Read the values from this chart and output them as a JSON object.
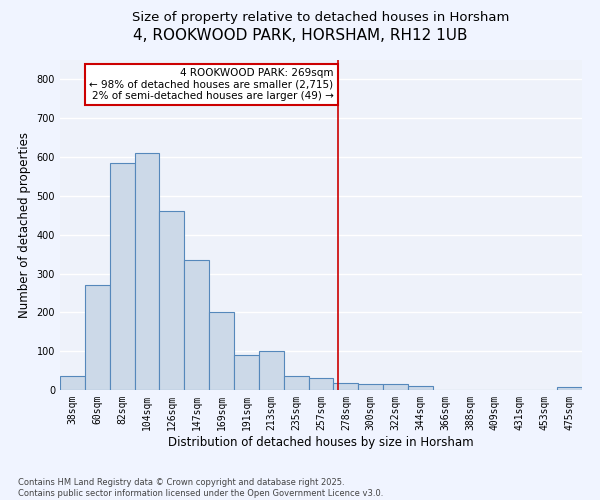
{
  "title": "4, ROOKWOOD PARK, HORSHAM, RH12 1UB",
  "subtitle": "Size of property relative to detached houses in Horsham",
  "xlabel": "Distribution of detached houses by size in Horsham",
  "ylabel": "Number of detached properties",
  "bar_color": "#ccd9e8",
  "bar_edge_color": "#5588bb",
  "background_color": "#eef2fa",
  "grid_color": "#ffffff",
  "categories": [
    "38sqm",
    "60sqm",
    "82sqm",
    "104sqm",
    "126sqm",
    "147sqm",
    "169sqm",
    "191sqm",
    "213sqm",
    "235sqm",
    "257sqm",
    "278sqm",
    "300sqm",
    "322sqm",
    "344sqm",
    "366sqm",
    "388sqm",
    "409sqm",
    "431sqm",
    "453sqm",
    "475sqm"
  ],
  "values": [
    35,
    270,
    585,
    610,
    460,
    335,
    200,
    90,
    100,
    35,
    30,
    18,
    15,
    15,
    10,
    0,
    0,
    0,
    0,
    0,
    8
  ],
  "ylim": [
    0,
    850
  ],
  "yticks": [
    0,
    100,
    200,
    300,
    400,
    500,
    600,
    700,
    800
  ],
  "vline_pos": 10.7,
  "vline_color": "#cc0000",
  "annotation_text": "4 ROOKWOOD PARK: 269sqm\n← 98% of detached houses are smaller (2,715)\n2% of semi-detached houses are larger (49) →",
  "annotation_box_color": "#ffffff",
  "annotation_box_edge": "#cc0000",
  "footer_text": "Contains HM Land Registry data © Crown copyright and database right 2025.\nContains public sector information licensed under the Open Government Licence v3.0.",
  "title_fontsize": 11,
  "subtitle_fontsize": 9.5,
  "axis_label_fontsize": 8.5,
  "tick_fontsize": 7,
  "annotation_fontsize": 7.5,
  "footer_fontsize": 6
}
